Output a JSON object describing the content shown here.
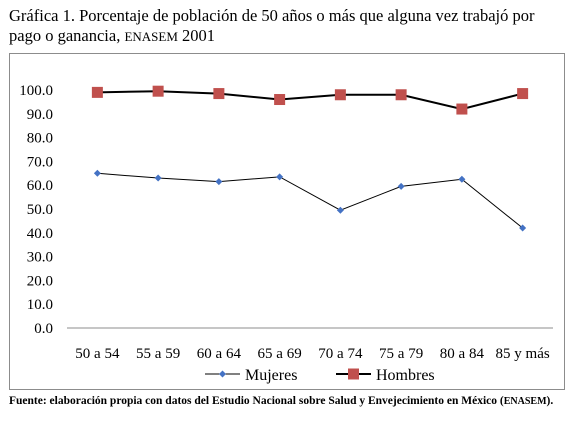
{
  "title": {
    "text": "Gráfica 1. Porcentaje de población de 50 años o más que alguna vez trabajó por pago o ganancia, ",
    "source_tag": "ENASEM",
    "year": " 2001"
  },
  "source": {
    "text": "Fuente: elaboración propia con datos del Estudio Nacional sobre Salud y Envejecimiento en México (",
    "tag": "ENASEM",
    "end": ")."
  },
  "chart_data": {
    "type": "line",
    "title": "",
    "xlabel": "",
    "ylabel": "",
    "categories": [
      "50 a 54",
      "55 a 59",
      "60 a 64",
      "65 a 69",
      "70 a 74",
      "75 a 79",
      "80 a 84",
      "85 y más"
    ],
    "y_ticks": [
      "0.0",
      "10.0",
      "20.0",
      "30.0",
      "40.0",
      "50.0",
      "60.0",
      "70.0",
      "80.0",
      "90.0",
      "100.0"
    ],
    "ylim": [
      0,
      100
    ],
    "grid": false,
    "legend": "bottom",
    "series": [
      {
        "name": "Mujeres",
        "values": [
          65.0,
          63.0,
          61.5,
          63.5,
          49.5,
          59.5,
          62.5,
          42.0
        ],
        "color": "#4472c4",
        "marker": "diamond"
      },
      {
        "name": "Hombres",
        "values": [
          99.0,
          99.5,
          98.5,
          96.0,
          98.0,
          98.0,
          92.0,
          98.5
        ],
        "color": "#c0504d",
        "marker": "square"
      }
    ]
  }
}
